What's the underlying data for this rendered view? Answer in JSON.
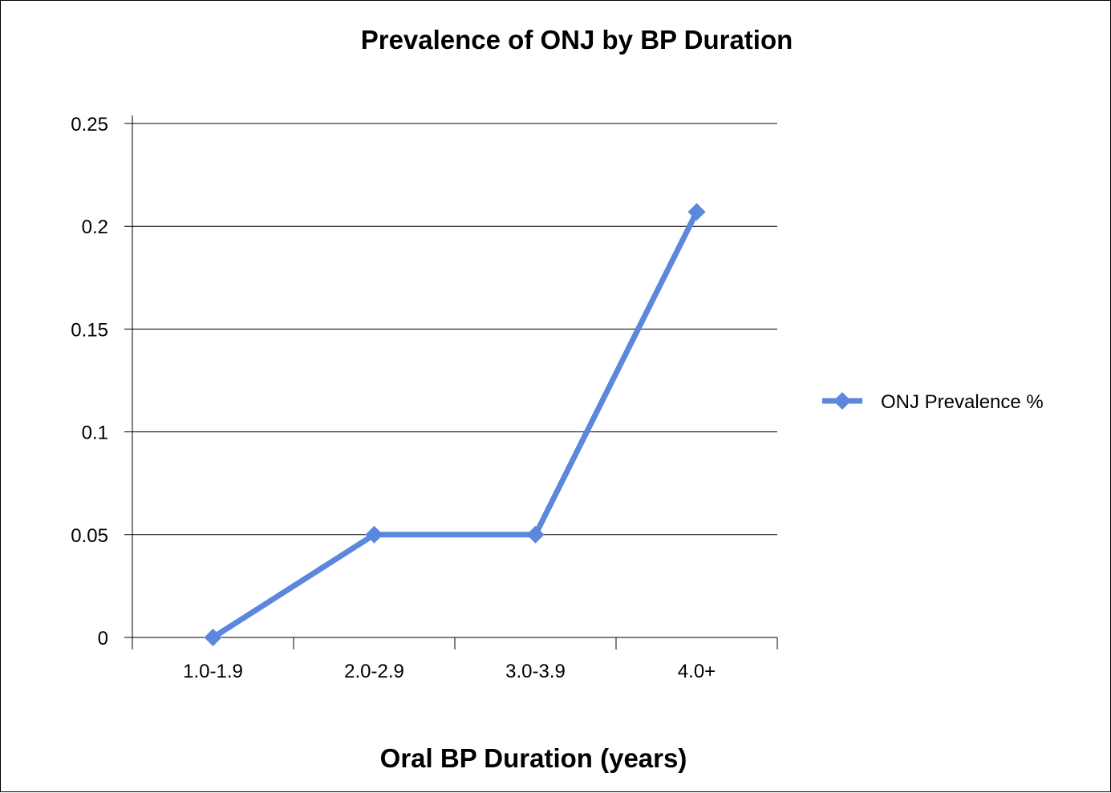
{
  "chart_data": {
    "type": "line",
    "title": "Prevalence of ONJ by BP Duration",
    "xlabel": "Oral BP Duration (years)",
    "ylabel": "",
    "categories": [
      "1.0-1.9",
      "2.0-2.9",
      "3.0-3.9",
      "4.0+"
    ],
    "series": [
      {
        "name": "ONJ Prevalence %",
        "values": [
          0,
          0.05,
          0.05,
          0.207
        ],
        "color": "#5b87dc",
        "marker": "diamond"
      }
    ],
    "ylim": [
      0,
      0.25
    ],
    "yticks": [
      "0",
      "0.05",
      "0.1",
      "0.15",
      "0.2",
      "0.25"
    ],
    "grid": true,
    "legend_position": "right"
  }
}
